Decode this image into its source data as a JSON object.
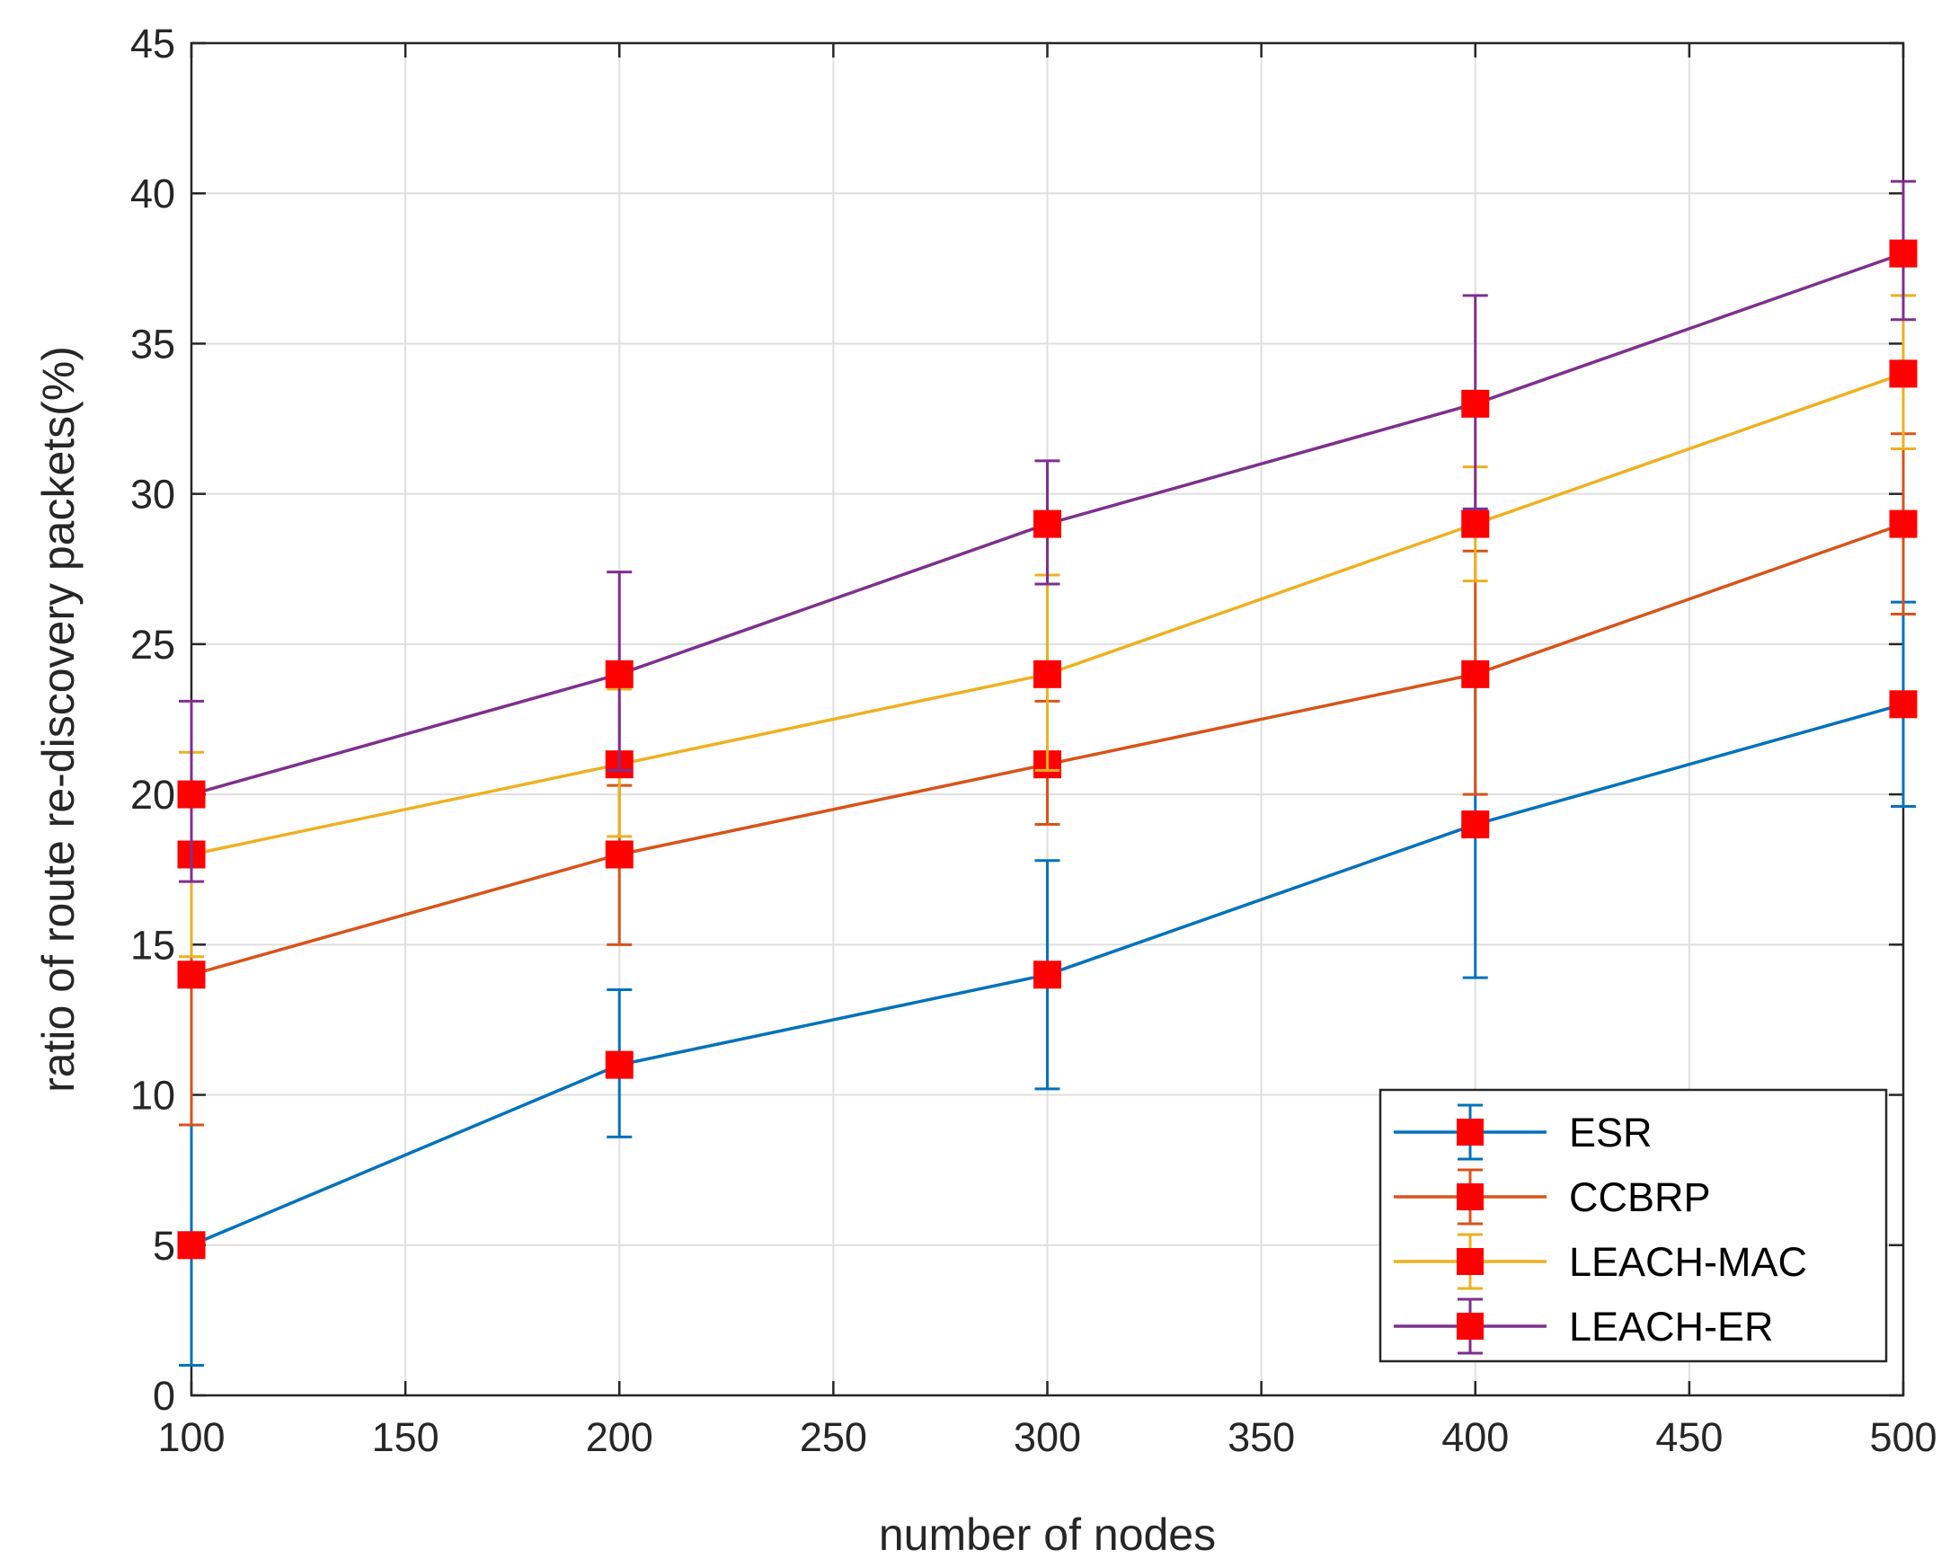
{
  "chart_data": {
    "type": "line",
    "title": "",
    "xlabel": "number of nodes",
    "ylabel": "ratio of route re-discovery packets(%)",
    "x": [
      100,
      200,
      300,
      400,
      500
    ],
    "xlim": [
      100,
      500
    ],
    "ylim": [
      0,
      45
    ],
    "xticks": [
      100,
      150,
      200,
      250,
      300,
      350,
      400,
      450,
      500
    ],
    "yticks": [
      0,
      5,
      10,
      15,
      20,
      25,
      30,
      35,
      40,
      45
    ],
    "grid": true,
    "legend_position": "bottom-right",
    "marker": "square",
    "marker_color": "#ff0000",
    "series": [
      {
        "name": "ESR",
        "color": "#0072bd",
        "values": [
          5,
          11,
          14,
          19,
          23
        ],
        "err_low": [
          1,
          8.6,
          10.2,
          13.9,
          19.6
        ],
        "err_high": [
          9,
          13.5,
          17.8,
          24,
          26.4
        ]
      },
      {
        "name": "CCBRP",
        "color": "#d95319",
        "values": [
          14,
          18,
          21,
          24,
          29
        ],
        "err_low": [
          9,
          15,
          19,
          20,
          26
        ],
        "err_high": [
          18,
          20.3,
          23.1,
          28.1,
          32
        ]
      },
      {
        "name": "LEACH-MAC",
        "color": "#edb120",
        "values": [
          18,
          21,
          24,
          29,
          34
        ],
        "err_low": [
          14.6,
          18.6,
          20.8,
          27.1,
          31.5
        ],
        "err_high": [
          21.4,
          23.5,
          27.3,
          30.9,
          36.6
        ]
      },
      {
        "name": "LEACH-ER",
        "color": "#7e2f8e",
        "values": [
          20,
          24,
          29,
          33,
          38
        ],
        "err_low": [
          17.1,
          20.8,
          27,
          29.5,
          35.8
        ],
        "err_high": [
          23.1,
          27.4,
          31.1,
          36.6,
          40.4
        ]
      }
    ]
  }
}
